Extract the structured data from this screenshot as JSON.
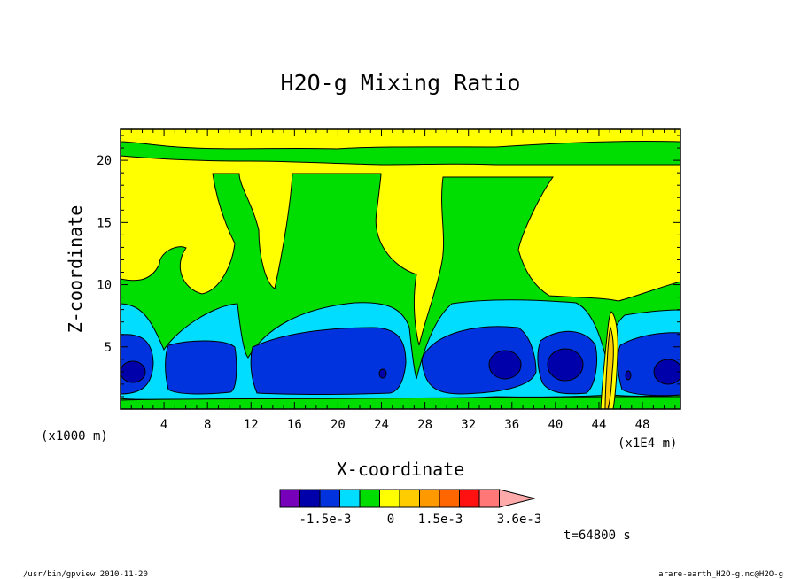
{
  "chart_data": {
    "type": "heatmap",
    "title": "H2O-g Mixing Ratio",
    "xlabel": "X-coordinate",
    "ylabel": "Z-coordinate",
    "x_unit_left": "(x1000 m)",
    "x_unit_right": "(x1E4 m)",
    "xlim": [
      0,
      51.5
    ],
    "ylim": [
      0,
      22.5
    ],
    "x_ticks": [
      4,
      8,
      12,
      16,
      20,
      24,
      28,
      32,
      36,
      40,
      44,
      48
    ],
    "y_ticks": [
      5,
      10,
      15,
      20
    ],
    "contour_levels": [
      -0.0024,
      -0.0021,
      -0.0018,
      -0.0015,
      -0.0012,
      -0.0009,
      -0.0006,
      -0.0003,
      0,
      0.0003,
      0.0006,
      0.0009,
      0.0012,
      0.0015,
      0.0018,
      0.0021,
      0.0024,
      0.0027,
      0.003,
      0.0033,
      0.0036
    ],
    "colorbar": {
      "colors": [
        "#7700bb",
        "#0000aa",
        "#0033dd",
        "#00ddff",
        "#00dd00",
        "#ffff00",
        "#ffcc00",
        "#ff9900",
        "#ff6600",
        "#ff1111",
        "#ff7777",
        "#ffaaaa"
      ],
      "tick_labels": [
        "-1.5e-3",
        "0",
        "1.5e-3",
        "3.6e-3"
      ]
    },
    "time_label": "t=64800 s"
  },
  "footer": {
    "left": "/usr/bin/gpview   2010-11-20",
    "right": "arare-earth_H2O-g.nc@H2O-g"
  }
}
